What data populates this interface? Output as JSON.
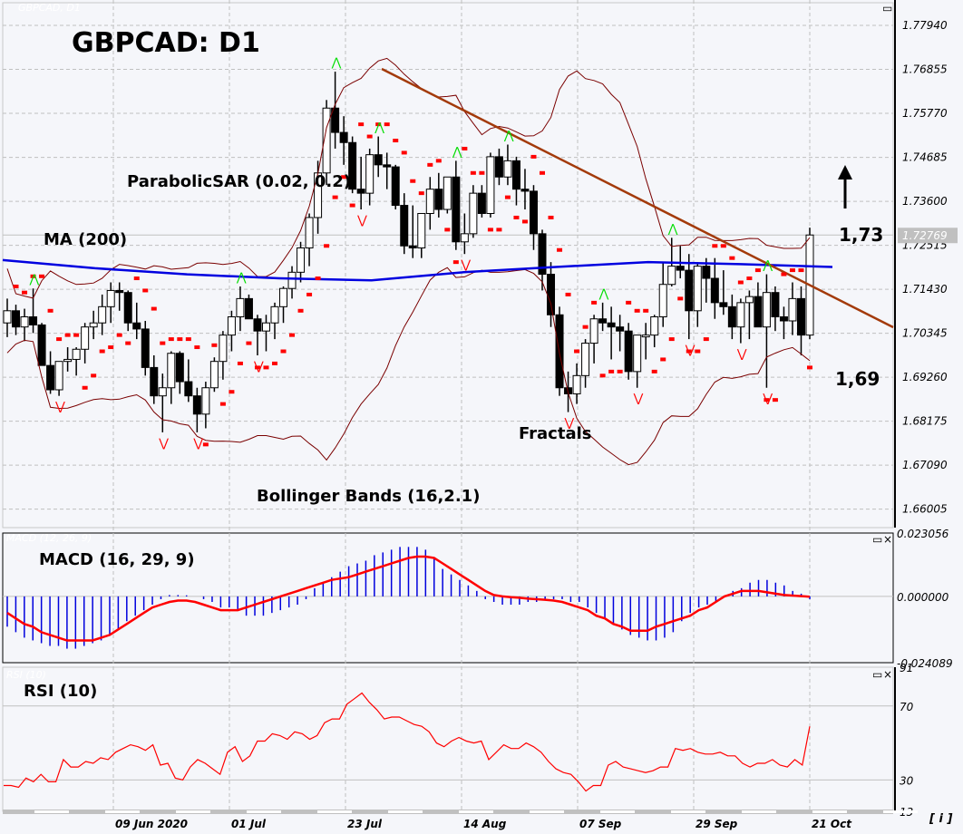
{
  "window": {
    "ghost_title": "GBPCAD, D1",
    "title": "GBPCAD: D1",
    "info_button": "[ i ]",
    "current_price_tag": "1.72769",
    "colors": {
      "background": "#f5f6fa",
      "grid": "#c0c0c0",
      "bull_candle": "#ffffff",
      "bear_candle": "#000000",
      "ma": "#0000e0",
      "bollinger": "#7a0000",
      "trendline": "#a33a0a",
      "sar": "#ff0000",
      "fractal_up": "#00dd00",
      "fractal_down": "#ff0000",
      "macd_hist": "#0000dd",
      "macd_signal": "#ff0000",
      "rsi": "#ff0000"
    }
  },
  "annotations": {
    "parabolic_sar": "ParabolicSAR (0.02, 0.2)",
    "ma": "MA (200)",
    "bollinger": "Bollinger Bands (16,2.1)",
    "fractals": "Fractals",
    "target_up": "1,73",
    "support": "1,69",
    "macd_title": "MACD (16, 29, 9)",
    "macd_ghost": "MACD (12, 26, 9)",
    "rsi_title": "RSI (10)",
    "rsi_ghost": "RSI (10)"
  },
  "chart_data": [
    {
      "type": "candlestick",
      "title": "GBPCAD: D1",
      "pane": "price",
      "y_ticks": [
        "1.77940",
        "1.76855",
        "1.75770",
        "1.74685",
        "1.73600",
        "1.72515",
        "1.71430",
        "1.70345",
        "1.69260",
        "1.68175",
        "1.67090",
        "1.66005"
      ],
      "ylim": [
        1.6555,
        1.785
      ],
      "last_price": 1.72769,
      "x_ticks": [
        "09 Jun 2020",
        "01 Jul",
        "23 Jul",
        "14 Aug",
        "07 Sep",
        "29 Sep",
        "21 Oct"
      ],
      "indicators": [
        "MA (200)",
        "Bollinger Bands (16,2.1)",
        "ParabolicSAR (0.02, 0.2)",
        "Fractals"
      ],
      "levels": {
        "resistance_target": 1.73,
        "support": 1.69
      },
      "ohlc": [
        [
          1.706,
          1.712,
          1.7025,
          1.709
        ],
        [
          1.709,
          1.7105,
          1.703,
          1.705
        ],
        [
          1.705,
          1.7095,
          1.7015,
          1.7075
        ],
        [
          1.7075,
          1.7145,
          1.7035,
          1.7055
        ],
        [
          1.7055,
          1.706,
          1.7,
          1.6955
        ],
        [
          1.6955,
          1.699,
          1.6885,
          1.6895
        ],
        [
          1.6895,
          1.6965,
          1.688,
          1.6965
        ],
        [
          1.6965,
          1.7,
          1.694,
          1.697
        ],
        [
          1.697,
          1.7,
          1.693,
          1.6995
        ],
        [
          1.6995,
          1.706,
          1.696,
          1.705
        ],
        [
          1.705,
          1.709,
          1.702,
          1.706
        ],
        [
          1.706,
          1.713,
          1.703,
          1.71
        ],
        [
          1.71,
          1.716,
          1.706,
          1.714
        ],
        [
          1.714,
          1.716,
          1.709,
          1.7135
        ],
        [
          1.7135,
          1.714,
          1.704,
          1.706
        ],
        [
          1.706,
          1.711,
          1.702,
          1.7045
        ],
        [
          1.7045,
          1.7065,
          1.693,
          1.695
        ],
        [
          1.695,
          1.698,
          1.686,
          1.688
        ],
        [
          1.688,
          1.6935,
          1.679,
          1.69
        ],
        [
          1.69,
          1.699,
          1.686,
          1.6985
        ],
        [
          1.6985,
          1.699,
          1.6885,
          1.6915
        ],
        [
          1.6915,
          1.697,
          1.6865,
          1.688
        ],
        [
          1.688,
          1.69,
          1.679,
          1.6835
        ],
        [
          1.6835,
          1.6915,
          1.68,
          1.69
        ],
        [
          1.69,
          1.6975,
          1.689,
          1.6965
        ],
        [
          1.6965,
          1.704,
          1.692,
          1.703
        ],
        [
          1.703,
          1.709,
          1.699,
          1.7075
        ],
        [
          1.7075,
          1.715,
          1.704,
          1.712
        ],
        [
          1.712,
          1.713,
          1.707,
          1.707
        ],
        [
          1.707,
          1.708,
          1.698,
          1.704
        ],
        [
          1.704,
          1.708,
          1.699,
          1.706
        ],
        [
          1.706,
          1.711,
          1.702,
          1.71
        ],
        [
          1.71,
          1.715,
          1.706,
          1.7145
        ],
        [
          1.7145,
          1.72,
          1.712,
          1.7185
        ],
        [
          1.7185,
          1.726,
          1.716,
          1.7245
        ],
        [
          1.7245,
          1.733,
          1.72,
          1.732
        ],
        [
          1.732,
          1.746,
          1.728,
          1.743
        ],
        [
          1.743,
          1.761,
          1.74,
          1.759
        ],
        [
          1.759,
          1.768,
          1.749,
          1.753
        ],
        [
          1.753,
          1.757,
          1.745,
          1.7505
        ],
        [
          1.7505,
          1.752,
          1.738,
          1.739
        ],
        [
          1.739,
          1.747,
          1.734,
          1.738
        ],
        [
          1.738,
          1.749,
          1.735,
          1.7475
        ],
        [
          1.7475,
          1.752,
          1.742,
          1.745
        ],
        [
          1.745,
          1.748,
          1.739,
          1.7445
        ],
        [
          1.7445,
          1.745,
          1.734,
          1.735
        ],
        [
          1.735,
          1.738,
          1.723,
          1.725
        ],
        [
          1.725,
          1.735,
          1.722,
          1.7245
        ],
        [
          1.7245,
          1.733,
          1.722,
          1.733
        ],
        [
          1.733,
          1.742,
          1.729,
          1.739
        ],
        [
          1.739,
          1.743,
          1.732,
          1.734
        ],
        [
          1.734,
          1.742,
          1.733,
          1.742
        ],
        [
          1.742,
          1.746,
          1.724,
          1.726
        ],
        [
          1.726,
          1.733,
          1.723,
          1.728
        ],
        [
          1.728,
          1.74,
          1.727,
          1.738
        ],
        [
          1.738,
          1.74,
          1.732,
          1.733
        ],
        [
          1.733,
          1.748,
          1.732,
          1.747
        ],
        [
          1.747,
          1.749,
          1.74,
          1.742
        ],
        [
          1.742,
          1.75,
          1.74,
          1.746
        ],
        [
          1.746,
          1.747,
          1.735,
          1.739
        ],
        [
          1.739,
          1.744,
          1.734,
          1.7385
        ],
        [
          1.7385,
          1.74,
          1.724,
          1.728
        ],
        [
          1.728,
          1.729,
          1.714,
          1.718
        ],
        [
          1.718,
          1.721,
          1.705,
          1.708
        ],
        [
          1.708,
          1.71,
          1.688,
          1.69
        ],
        [
          1.69,
          1.694,
          1.684,
          1.6885
        ],
        [
          1.6885,
          1.696,
          1.686,
          1.693
        ],
        [
          1.693,
          1.702,
          1.69,
          1.701
        ],
        [
          1.701,
          1.708,
          1.696,
          1.707
        ],
        [
          1.707,
          1.711,
          1.704,
          1.706
        ],
        [
          1.706,
          1.71,
          1.697,
          1.705
        ],
        [
          1.705,
          1.708,
          1.699,
          1.704
        ],
        [
          1.704,
          1.706,
          1.692,
          1.694
        ],
        [
          1.694,
          1.702,
          1.69,
          1.703
        ],
        [
          1.703,
          1.706,
          1.697,
          1.703
        ],
        [
          1.703,
          1.708,
          1.7,
          1.7075
        ],
        [
          1.7075,
          1.721,
          1.705,
          1.7155
        ],
        [
          1.7155,
          1.727,
          1.715,
          1.72
        ],
        [
          1.72,
          1.725,
          1.717,
          1.719
        ],
        [
          1.719,
          1.723,
          1.702,
          1.709
        ],
        [
          1.709,
          1.721,
          1.705,
          1.72
        ],
        [
          1.72,
          1.722,
          1.711,
          1.717
        ],
        [
          1.717,
          1.722,
          1.707,
          1.711
        ],
        [
          1.711,
          1.719,
          1.708,
          1.71
        ],
        [
          1.71,
          1.713,
          1.702,
          1.705
        ],
        [
          1.705,
          1.712,
          1.701,
          1.711
        ],
        [
          1.711,
          1.714,
          1.702,
          1.7125
        ],
        [
          1.7125,
          1.716,
          1.705,
          1.705
        ],
        [
          1.705,
          1.718,
          1.69,
          1.7135
        ],
        [
          1.7135,
          1.715,
          1.704,
          1.7075
        ],
        [
          1.7075,
          1.71,
          1.702,
          1.7065
        ],
        [
          1.7065,
          1.716,
          1.703,
          1.712
        ],
        [
          1.712,
          1.715,
          1.698,
          1.703
        ],
        [
          1.703,
          1.7295,
          1.702,
          1.72769
        ]
      ],
      "ma200": [
        1.7215,
        1.7195,
        1.718,
        1.717,
        1.7165,
        1.7185,
        1.7198,
        1.721,
        1.7205,
        1.7198
      ],
      "trendline": {
        "from": [
          1.768,
          "~23 Jul"
        ],
        "to": [
          1.705,
          "right edge"
        ]
      },
      "fractal_labels": "green arrows above highs, red arrows below lows"
    },
    {
      "type": "bar+line",
      "pane": "macd",
      "title": "MACD (16, 29, 9)",
      "y_ticks": [
        "0.023056",
        "0.000000",
        "-0.024089"
      ],
      "ylim": [
        -0.024089,
        0.023056
      ],
      "histogram": [
        -0.011,
        -0.013,
        -0.015,
        -0.016,
        -0.017,
        -0.018,
        -0.018,
        -0.019,
        -0.019,
        -0.018,
        -0.017,
        -0.016,
        -0.014,
        -0.012,
        -0.009,
        -0.007,
        -0.005,
        -0.003,
        -0.001,
        0.0005,
        0.0005,
        0.0004,
        0.0,
        -0.001,
        -0.002,
        -0.004,
        -0.004,
        -0.005,
        -0.007,
        -0.007,
        -0.007,
        -0.006,
        -0.005,
        -0.004,
        -0.003,
        -0.001,
        0.003,
        0.005,
        0.007,
        0.009,
        0.011,
        0.012,
        0.013,
        0.015,
        0.016,
        0.017,
        0.018,
        0.018,
        0.018,
        0.017,
        0.014,
        0.01,
        0.008,
        0.006,
        0.004,
        0.002,
        -0.001,
        -0.002,
        -0.003,
        -0.003,
        -0.003,
        -0.002,
        -0.002,
        -0.001,
        -0.001,
        -0.001,
        -0.002,
        -0.002,
        -0.004,
        -0.006,
        -0.008,
        -0.01,
        -0.012,
        -0.014,
        -0.015,
        -0.016,
        -0.016,
        -0.015,
        -0.013,
        -0.009,
        -0.006,
        -0.004,
        -0.003,
        -0.002,
        0.0,
        0.002,
        0.003,
        0.005,
        0.006,
        0.006,
        0.005,
        0.004,
        0.002,
        0.001,
        -0.001
      ],
      "signal": [
        -0.006,
        -0.008,
        -0.01,
        -0.011,
        -0.013,
        -0.014,
        -0.015,
        -0.016,
        -0.016,
        -0.016,
        -0.016,
        -0.015,
        -0.014,
        -0.012,
        -0.01,
        -0.008,
        -0.006,
        -0.004,
        -0.003,
        -0.002,
        -0.0015,
        -0.0015,
        -0.002,
        -0.003,
        -0.004,
        -0.005,
        -0.005,
        -0.005,
        -0.004,
        -0.003,
        -0.002,
        -0.001,
        0.0,
        0.001,
        0.002,
        0.003,
        0.004,
        0.005,
        0.006,
        0.0065,
        0.007,
        0.008,
        0.009,
        0.01,
        0.011,
        0.012,
        0.013,
        0.014,
        0.0145,
        0.0145,
        0.014,
        0.012,
        0.01,
        0.008,
        0.006,
        0.004,
        0.002,
        0.0005,
        0.0,
        -0.0003,
        -0.0005,
        -0.0008,
        -0.001,
        -0.0012,
        -0.0015,
        -0.002,
        -0.003,
        -0.004,
        -0.005,
        -0.007,
        -0.008,
        -0.01,
        -0.011,
        -0.0125,
        -0.0125,
        -0.0125,
        -0.011,
        -0.01,
        -0.009,
        -0.008,
        -0.007,
        -0.005,
        -0.004,
        -0.002,
        0.0,
        0.001,
        0.002,
        0.002,
        0.002,
        0.0015,
        0.001,
        0.0005,
        0.0003,
        0.0001,
        -0.0001
      ]
    },
    {
      "type": "line",
      "pane": "rsi",
      "title": "RSI (10)",
      "y_ticks": [
        "91",
        "70",
        "30",
        "13"
      ],
      "ylim": [
        13,
        91
      ],
      "levels": [
        70,
        30
      ],
      "values": [
        27,
        27,
        26,
        31,
        29,
        33,
        29,
        29,
        41,
        37,
        37,
        40,
        39,
        42,
        41,
        45,
        47,
        49,
        48,
        46,
        49,
        38,
        39,
        31,
        30,
        37,
        41,
        39,
        36,
        33,
        45,
        48,
        40,
        43,
        51,
        51,
        55,
        54,
        52,
        56,
        55,
        52,
        54,
        61,
        63,
        63,
        71,
        74,
        77,
        72,
        68,
        63,
        64,
        64,
        62,
        60,
        59,
        56,
        50,
        48,
        51,
        53,
        51,
        50,
        51,
        41,
        45,
        49,
        47,
        47,
        50,
        48,
        45,
        40,
        36,
        34,
        33,
        29,
        24,
        27,
        27,
        38,
        40,
        37,
        36,
        35,
        34,
        35,
        37,
        37,
        47,
        46,
        47,
        45,
        44,
        44,
        45,
        43,
        43,
        39,
        37,
        39,
        39,
        41,
        38,
        37,
        41,
        38,
        59
      ]
    }
  ]
}
